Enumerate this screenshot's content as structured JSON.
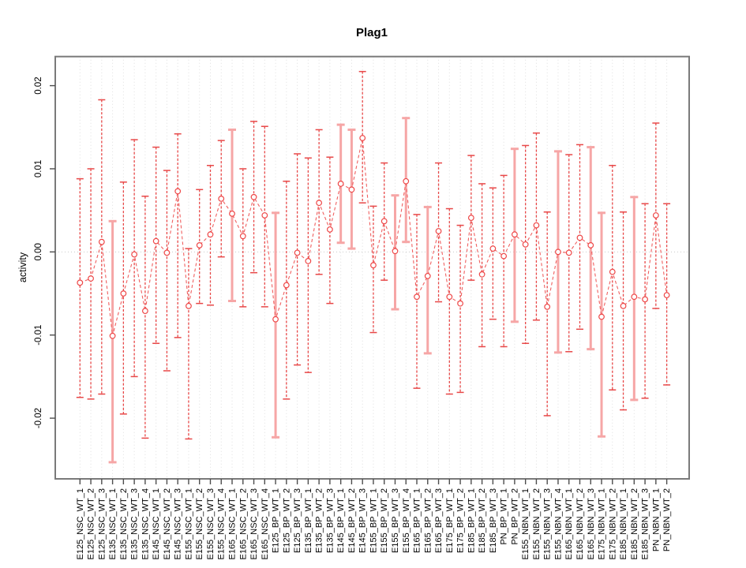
{
  "title": "Plag1",
  "y_axis": {
    "label": "activity",
    "tick_labels": [
      "0.02",
      "0.01",
      "0.00",
      "-0.01",
      "-0.02"
    ],
    "tick_values": [
      0.02,
      0.01,
      0.0,
      -0.01,
      -0.02
    ]
  },
  "chart_data": {
    "type": "line",
    "title": "Plag1",
    "xlabel": "",
    "ylabel": "activity",
    "ylim": [
      -0.0273,
      0.0235
    ],
    "grid": "dotted vertical gridline at every category; dotted horizontal line at 0",
    "legend_position": "none",
    "marker": "open-circle with error bars",
    "categories": [
      "E125_NSC_WT_1",
      "E125_NSC_WT_2",
      "E125_NSC_WT_3",
      "E135_NSC_WT_1",
      "E135_NSC_WT_2",
      "E135_NSC_WT_3",
      "E135_NSC_WT_4",
      "E145_NSC_WT_1",
      "E145_NSC_WT_2",
      "E145_NSC_WT_3",
      "E155_NSC_WT_1",
      "E155_NSC_WT_2",
      "E155_NSC_WT_3",
      "E155_NSC_WT_4",
      "E165_NSC_WT_1",
      "E165_NSC_WT_2",
      "E165_NSC_WT_3",
      "E165_NSC_WT_4",
      "E125_BP_WT_1",
      "E125_BP_WT_2",
      "E125_BP_WT_3",
      "E135_BP_WT_1",
      "E135_BP_WT_2",
      "E135_BP_WT_3",
      "E145_BP_WT_1",
      "E145_BP_WT_2",
      "E145_BP_WT_3",
      "E155_BP_WT_1",
      "E155_BP_WT_2",
      "E155_BP_WT_3",
      "E155_BP_WT_4",
      "E165_BP_WT_1",
      "E165_BP_WT_2",
      "E165_BP_WT_3",
      "E175_BP_WT_1",
      "E175_BP_WT_2",
      "E185_BP_WT_1",
      "E185_BP_WT_2",
      "E185_BP_WT_3",
      "PN_BP_WT_1",
      "PN_BP_WT_2",
      "E155_NBN_WT_1",
      "E155_NBN_WT_2",
      "E155_NBN_WT_3",
      "E155_NBN_WT_4",
      "E165_NBN_WT_1",
      "E165_NBN_WT_2",
      "E165_NBN_WT_3",
      "E175_NBN_WT_1",
      "E175_NBN_WT_2",
      "E185_NBN_WT_1",
      "E185_NBN_WT_2",
      "E185_NBN_WT_3",
      "PN_NBN_WT_1",
      "PN_NBN_WT_2"
    ],
    "series": [
      {
        "name": "activity",
        "values": [
          -0.0037,
          -0.0032,
          0.0012,
          -0.0101,
          -0.005,
          -0.0003,
          -0.0071,
          0.0013,
          -0.0001,
          0.0073,
          -0.0065,
          0.0008,
          0.0021,
          0.0064,
          0.0046,
          0.0019,
          0.0066,
          0.0044,
          -0.0081,
          -0.004,
          -0.0001,
          -0.0011,
          0.0059,
          0.0027,
          0.0082,
          0.0075,
          0.0137,
          -0.0016,
          0.0037,
          0.0001,
          0.0085,
          -0.0054,
          -0.0029,
          0.0025,
          -0.0054,
          -0.0062,
          0.0041,
          -0.0027,
          0.0004,
          -0.0005,
          0.0021,
          0.0009,
          0.0032,
          -0.0066,
          0.0,
          -0.0001,
          0.0017,
          0.0008,
          -0.0078,
          -0.0024,
          -0.0065,
          -0.0054,
          -0.0057,
          0.0044,
          -0.0052
        ],
        "error_high": [
          0.0088,
          0.01,
          0.0183,
          0.0037,
          0.0084,
          0.0135,
          0.0067,
          0.0126,
          0.0098,
          0.0142,
          0.0004,
          0.0075,
          0.0104,
          0.0134,
          0.0147,
          0.01,
          0.0157,
          0.0151,
          0.0047,
          0.0085,
          0.0118,
          0.0113,
          0.0147,
          0.0114,
          0.0153,
          0.0147,
          0.0217,
          0.0055,
          0.0107,
          0.0068,
          0.0161,
          0.0045,
          0.0054,
          0.0107,
          0.0052,
          0.0032,
          0.0116,
          0.0082,
          0.0077,
          0.0092,
          0.0124,
          0.0128,
          0.0143,
          0.0048,
          0.0121,
          0.0117,
          0.0129,
          0.0126,
          0.0047,
          0.0104,
          0.0048,
          0.0066,
          0.0058,
          0.0155,
          0.0058
        ],
        "error_low": [
          -0.0175,
          -0.0177,
          -0.0171,
          -0.0253,
          -0.0195,
          -0.015,
          -0.0224,
          -0.011,
          -0.0143,
          -0.0103,
          -0.0225,
          -0.0062,
          -0.0064,
          -0.0006,
          -0.0059,
          -0.0066,
          -0.0025,
          -0.0066,
          -0.0223,
          -0.0177,
          -0.0136,
          -0.0145,
          -0.0027,
          -0.0062,
          0.0011,
          0.0004,
          0.0059,
          -0.0097,
          -0.0034,
          -0.0069,
          0.0012,
          -0.0164,
          -0.0122,
          -0.006,
          -0.0171,
          -0.0169,
          -0.0034,
          -0.0114,
          -0.0081,
          -0.0114,
          -0.0084,
          -0.011,
          -0.0082,
          -0.0197,
          -0.0121,
          -0.012,
          -0.0093,
          -0.0117,
          -0.0222,
          -0.0166,
          -0.019,
          -0.0178,
          -0.0176,
          -0.0068,
          -0.016
        ]
      }
    ],
    "pale_bar_indices": [
      4,
      15,
      19,
      25,
      26,
      30,
      31,
      33,
      41,
      45,
      48,
      49,
      52
    ]
  },
  "colors": {
    "point": "#ee4747",
    "line": "#f06060",
    "error_bar": "#e84848",
    "error_bar_pale": "#f6a6a6",
    "gridline": "#dedede",
    "zero_line": "#c9c9c9",
    "frame": "#7a7a7a",
    "tick": "#4d4d4d",
    "text": "#000000",
    "background": "#ffffff"
  }
}
